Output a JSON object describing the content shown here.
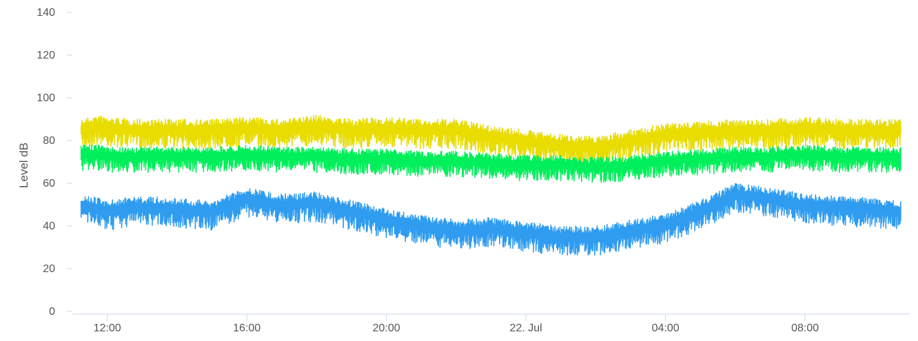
{
  "chart_data": {
    "type": "line",
    "title": "",
    "xlabel": "",
    "ylabel": "Level dB",
    "ylim": [
      0,
      140
    ],
    "yticks": [
      0,
      20,
      40,
      60,
      80,
      100,
      120,
      140
    ],
    "xlim": [
      "21 Jul 11:00",
      "22 Jul 11:00"
    ],
    "xticks": [
      "12:00",
      "16:00",
      "20:00",
      "22. Jul",
      "04:00",
      "08:00"
    ],
    "grid": false,
    "legend": "none",
    "series": [
      {
        "color": "#e8dc00",
        "x": [
          "11:15",
          "11:45",
          "12:00",
          "13:00",
          "14:00",
          "15:00",
          "16:00",
          "17:00",
          "18:00",
          "19:00",
          "20:00",
          "21:00",
          "22:00",
          "23:00",
          "00:00",
          "01:00",
          "02:00",
          "03:00",
          "04:00",
          "05:00",
          "06:00",
          "07:00",
          "08:00",
          "09:00",
          "10:00",
          "10:45"
        ],
        "values": [
          90,
          92,
          91,
          90,
          90,
          90,
          91,
          90,
          92,
          90,
          91,
          90,
          90,
          87,
          85,
          83,
          82,
          85,
          88,
          89,
          90,
          90,
          91,
          90,
          90,
          90
        ]
      },
      {
        "color": "#00ef5a",
        "x": [
          "11:15",
          "11:45",
          "12:00",
          "13:00",
          "14:00",
          "15:00",
          "16:00",
          "17:00",
          "18:00",
          "19:00",
          "20:00",
          "21:00",
          "22:00",
          "23:00",
          "00:00",
          "01:00",
          "02:00",
          "03:00",
          "04:00",
          "05:00",
          "06:00",
          "07:00",
          "08:00",
          "09:00",
          "10:00",
          "10:45"
        ],
        "values": [
          78,
          78,
          77,
          77,
          77,
          77,
          78,
          77,
          77,
          76,
          76,
          75,
          75,
          74,
          73,
          73,
          72,
          73,
          75,
          76,
          77,
          77,
          78,
          77,
          77,
          77
        ]
      },
      {
        "color": "#2f9cf0",
        "x": [
          "11:15",
          "11:45",
          "12:00",
          "13:00",
          "14:00",
          "15:00",
          "16:00",
          "17:00",
          "18:00",
          "19:00",
          "20:00",
          "21:00",
          "22:00",
          "23:00",
          "00:00",
          "01:00",
          "02:00",
          "03:00",
          "04:00",
          "05:00",
          "06:00",
          "07:00",
          "08:00",
          "09:00",
          "10:00",
          "10:45"
        ],
        "values": [
          55,
          53,
          52,
          54,
          53,
          52,
          58,
          55,
          56,
          52,
          48,
          45,
          43,
          44,
          42,
          40,
          40,
          43,
          46,
          52,
          60,
          58,
          55,
          54,
          53,
          52
        ]
      }
    ]
  }
}
